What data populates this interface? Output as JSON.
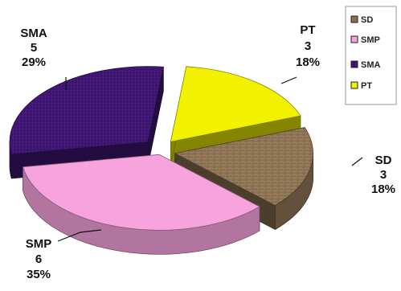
{
  "chart_data": {
    "type": "pie",
    "title": "",
    "slices": [
      {
        "label": "SD",
        "value": 3,
        "percent": "18%",
        "color": "#8a7052"
      },
      {
        "label": "SMP",
        "value": 6,
        "percent": "35%",
        "color": "#f7a3de"
      },
      {
        "label": "SMA",
        "value": 5,
        "percent": "29%",
        "color": "#3f1672"
      },
      {
        "label": "PT",
        "value": 3,
        "percent": "18%",
        "color": "#f2f200"
      }
    ],
    "legend": {
      "placement": "top-right",
      "entries": [
        "SD",
        "SMP",
        "SMA",
        "PT"
      ]
    },
    "exploded": true,
    "three_d": true
  }
}
